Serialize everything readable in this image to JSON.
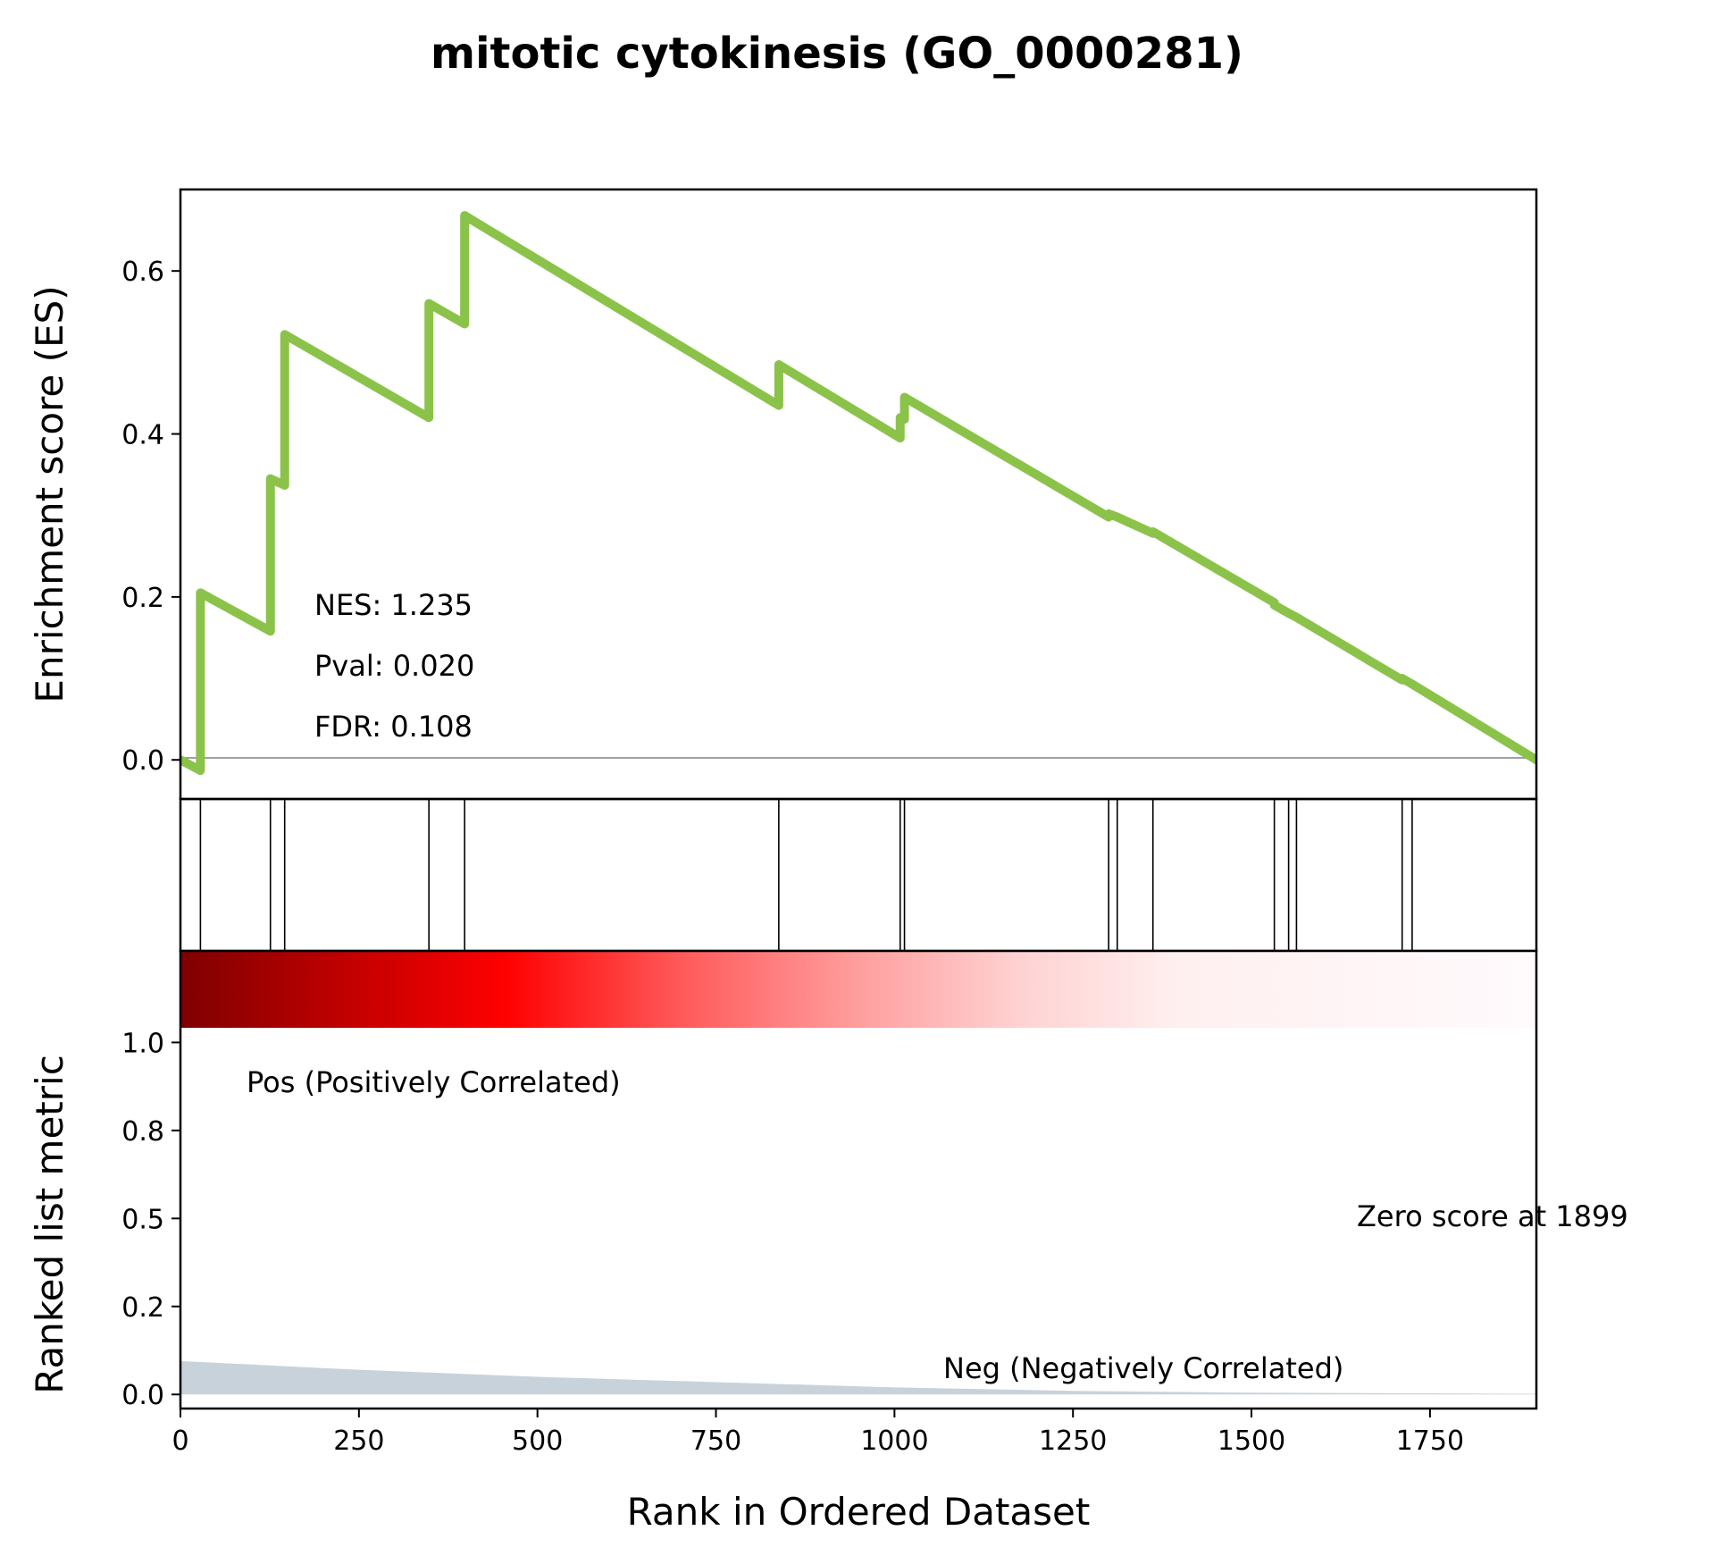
{
  "chart_data": {
    "type": "line",
    "title": "mitotic cytokinesis (GO_0000281)",
    "xlabel": "Rank in Ordered Dataset",
    "xlim": [
      0,
      1899
    ],
    "x_ticks": [
      "0",
      "250",
      "500",
      "750",
      "1000",
      "1250",
      "1500",
      "1750"
    ],
    "x_tick_values": [
      0,
      250,
      500,
      750,
      1000,
      1250,
      1500,
      1750
    ],
    "es_panel": {
      "ylabel": "Enrichment score (ES)",
      "ylim": [
        -0.048,
        0.7
      ],
      "y_ticks": [
        "0.0",
        "0.2",
        "0.4",
        "0.6"
      ],
      "y_tick_values": [
        0,
        0.2,
        0.4,
        0.6
      ],
      "line_color": "#8bc34a",
      "zero_line": true,
      "stats": {
        "nes": "NES: 1.235",
        "pval": "Pval: 0.020",
        "fdr": "FDR: 0.108"
      },
      "series": [
        {
          "x": [
            0,
            28,
            28,
            126,
            126,
            146,
            146,
            348,
            348,
            398,
            398,
            838,
            838,
            1008,
            1008,
            1014,
            1014,
            1300,
            1300,
            1312,
            1312,
            1362,
            1362,
            1532,
            1532,
            1552,
            1552,
            1563,
            1563,
            1711,
            1711,
            1725,
            1725,
            1899
          ],
          "y": [
            0,
            -0.013,
            0.205,
            0.158,
            0.345,
            0.337,
            0.522,
            0.42,
            0.56,
            0.535,
            0.668,
            0.435,
            0.485,
            0.395,
            0.42,
            0.418,
            0.445,
            0.298,
            0.302,
            0.298,
            0.298,
            0.278,
            0.28,
            0.193,
            0.19,
            0.18,
            0.18,
            0.175,
            0.175,
            0.098,
            0.1,
            0.093,
            0.093,
            0.0
          ]
        }
      ]
    },
    "hits_panel": {
      "hits": [
        28,
        126,
        146,
        348,
        398,
        838,
        1008,
        1014,
        1300,
        1312,
        1362,
        1532,
        1552,
        1563,
        1711,
        1725
      ]
    },
    "metric_panel": {
      "ylabel": "Ranked list metric",
      "ylim": [
        -0.04,
        1.26
      ],
      "y_ticks": [
        "0.0",
        "0.2",
        "0.5",
        "0.8",
        "1.0"
      ],
      "y_tick_values": [
        0,
        0.25,
        0.5,
        0.75,
        1.0
      ],
      "pos_label": "Pos (Positively Correlated)",
      "neg_label": "Neg (Negatively Correlated)",
      "zero_label": "Zero score at 1899",
      "pos_color": "#ff0000",
      "neg_color": "#0000ff",
      "fill_color": "#c8d2db",
      "metric": {
        "x": [
          0,
          250,
          500,
          750,
          1000,
          1250,
          1500,
          1750,
          1899
        ],
        "y": [
          0.095,
          0.07,
          0.05,
          0.035,
          0.02,
          0.01,
          0.005,
          0.003,
          0.002
        ]
      }
    }
  }
}
